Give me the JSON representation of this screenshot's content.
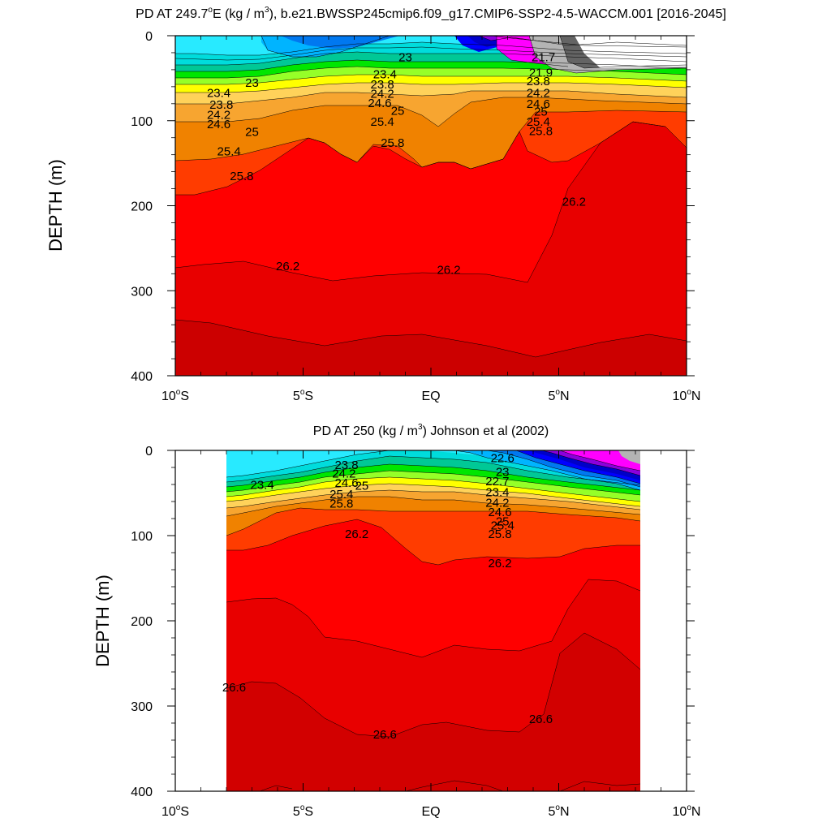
{
  "chart_data": [
    {
      "type": "contour",
      "title_pre": "PD AT 249.7",
      "title_deg": "o",
      "title_mid": "E (kg / m",
      "title_sup": "3",
      "title_post": "), b.e21.BWSSP245cmip6.f09_g17.CMIP6-SSP2-4.5-WACCM.001 [2016-2045]",
      "ylabel": "DEPTH (m)",
      "xlim": [
        -10,
        10
      ],
      "ylim": [
        0,
        400
      ],
      "y_reversed": true,
      "x_ticks": [
        {
          "value": -10,
          "num": "10",
          "deg": "o",
          "hemi": "S"
        },
        {
          "value": -5,
          "num": "5",
          "deg": "o",
          "hemi": "S"
        },
        {
          "value": 0,
          "num": "EQ",
          "deg": "",
          "hemi": ""
        },
        {
          "value": 5,
          "num": "5",
          "deg": "o",
          "hemi": "N"
        },
        {
          "value": 10,
          "num": "10",
          "deg": "o",
          "hemi": "N"
        }
      ],
      "y_ticks": [
        "0",
        "100",
        "200",
        "300",
        "400"
      ],
      "y_tick_values": [
        0,
        100,
        200,
        300,
        400
      ],
      "data_x_range": [
        -10,
        10
      ],
      "contour_labels": [
        {
          "text": "23",
          "lon": -7.0,
          "depth": 60
        },
        {
          "text": "23.4",
          "lon": -8.3,
          "depth": 72
        },
        {
          "text": "23.8",
          "lon": -8.2,
          "depth": 86
        },
        {
          "text": "24.2",
          "lon": -8.3,
          "depth": 98
        },
        {
          "text": "24.6",
          "lon": -8.3,
          "depth": 109
        },
        {
          "text": "25",
          "lon": -7.0,
          "depth": 118
        },
        {
          "text": "25.4",
          "lon": -7.9,
          "depth": 141
        },
        {
          "text": "25.8",
          "lon": -7.4,
          "depth": 170
        },
        {
          "text": "23",
          "lon": -1.0,
          "depth": 30
        },
        {
          "text": "23.4",
          "lon": -1.8,
          "depth": 50
        },
        {
          "text": "23.8",
          "lon": -1.9,
          "depth": 62
        },
        {
          "text": "24.2",
          "lon": -1.9,
          "depth": 73
        },
        {
          "text": "24.6",
          "lon": -2.0,
          "depth": 84
        },
        {
          "text": "25",
          "lon": -1.3,
          "depth": 93
        },
        {
          "text": "25.4",
          "lon": -1.9,
          "depth": 106
        },
        {
          "text": "25.8",
          "lon": -1.5,
          "depth": 131
        },
        {
          "text": "21.7",
          "lon": 4.4,
          "depth": 30
        },
        {
          "text": "21.9",
          "lon": 4.3,
          "depth": 48
        },
        {
          "text": "23.8",
          "lon": 4.2,
          "depth": 58
        },
        {
          "text": "24.2",
          "lon": 4.2,
          "depth": 72
        },
        {
          "text": "24.6",
          "lon": 4.2,
          "depth": 85
        },
        {
          "text": "25",
          "lon": 4.3,
          "depth": 94
        },
        {
          "text": "25.4",
          "lon": 4.2,
          "depth": 106
        },
        {
          "text": "25.8",
          "lon": 4.3,
          "depth": 117
        },
        {
          "text": "26.2",
          "lon": -5.6,
          "depth": 276
        },
        {
          "text": "26.2",
          "lon": 0.7,
          "depth": 280
        },
        {
          "text": "26.2",
          "lon": 5.6,
          "depth": 200
        }
      ]
    },
    {
      "type": "contour",
      "title_pre": "PD AT 250 (kg / m",
      "title_sup": "3",
      "title_post": ") Johnson et al (2002)",
      "ylabel": "DEPTH (m)",
      "xlim": [
        -10,
        10
      ],
      "ylim": [
        0,
        400
      ],
      "y_reversed": true,
      "x_ticks": [
        {
          "value": -10,
          "num": "10",
          "deg": "o",
          "hemi": "S"
        },
        {
          "value": -5,
          "num": "5",
          "deg": "o",
          "hemi": "S"
        },
        {
          "value": 0,
          "num": "EQ",
          "deg": "",
          "hemi": ""
        },
        {
          "value": 5,
          "num": "5",
          "deg": "o",
          "hemi": "N"
        },
        {
          "value": 10,
          "num": "10",
          "deg": "o",
          "hemi": "N"
        }
      ],
      "y_ticks": [
        "0",
        "100",
        "200",
        "300",
        "400"
      ],
      "y_tick_values": [
        0,
        100,
        200,
        300,
        400
      ],
      "data_x_range": [
        -8,
        8.2
      ],
      "contour_labels": [
        {
          "text": "23.4",
          "lon": -6.6,
          "depth": 45
        },
        {
          "text": "23.8",
          "lon": -3.3,
          "depth": 22
        },
        {
          "text": "24.2",
          "lon": -3.4,
          "depth": 32
        },
        {
          "text": "24.6",
          "lon": -3.3,
          "depth": 43
        },
        {
          "text": "25",
          "lon": -2.7,
          "depth": 46
        },
        {
          "text": "25.4",
          "lon": -3.5,
          "depth": 56
        },
        {
          "text": "25.8",
          "lon": -3.5,
          "depth": 67
        },
        {
          "text": "22.6",
          "lon": 2.8,
          "depth": 14
        },
        {
          "text": "23",
          "lon": 2.8,
          "depth": 30
        },
        {
          "text": "22.7",
          "lon": 2.6,
          "depth": 41
        },
        {
          "text": "23.4",
          "lon": 2.6,
          "depth": 54
        },
        {
          "text": "24.2",
          "lon": 2.6,
          "depth": 66
        },
        {
          "text": "24.6",
          "lon": 2.7,
          "depth": 77
        },
        {
          "text": "25",
          "lon": 2.8,
          "depth": 88
        },
        {
          "text": "25.4",
          "lon": 2.8,
          "depth": 93
        },
        {
          "text": "25.8",
          "lon": 2.7,
          "depth": 103
        },
        {
          "text": "26.2",
          "lon": -2.9,
          "depth": 103
        },
        {
          "text": "26.2",
          "lon": 2.7,
          "depth": 137
        },
        {
          "text": "26.6",
          "lon": -7.7,
          "depth": 283
        },
        {
          "text": "26.6",
          "lon": -1.8,
          "depth": 338
        },
        {
          "text": "26.6",
          "lon": 4.3,
          "depth": 320
        }
      ]
    }
  ]
}
